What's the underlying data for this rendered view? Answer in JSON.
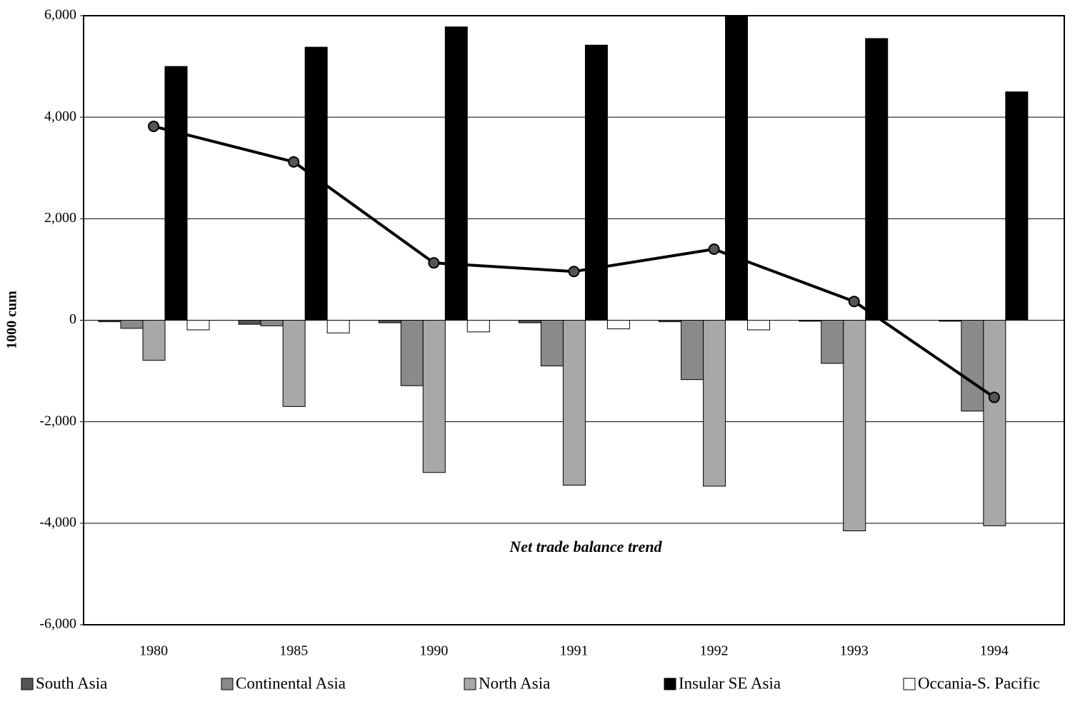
{
  "chart_data": {
    "type": "bar",
    "y_axis_label": "1000 cum",
    "annotation": "Net trade balance trend",
    "categories": [
      "1980",
      "1985",
      "1990",
      "1991",
      "1992",
      "1993",
      "1994"
    ],
    "series": [
      {
        "name": "South Asia",
        "color": "#555555",
        "values": [
          -30,
          -80,
          -50,
          -50,
          -30,
          -20,
          -20
        ]
      },
      {
        "name": "Continental Asia",
        "color": "#8a8a8a",
        "values": [
          -160,
          -110,
          -1290,
          -900,
          -1170,
          -850,
          -1790
        ]
      },
      {
        "name": "North Asia",
        "color": "#a8a8a8",
        "values": [
          -790,
          -1700,
          -3000,
          -3250,
          -3270,
          -4150,
          -4050
        ]
      },
      {
        "name": "Insular SE Asia",
        "color": "#000000",
        "values": [
          5000,
          5380,
          5780,
          5420,
          6000,
          5550,
          4500
        ]
      },
      {
        "name": "Occania-S. Pacific",
        "color": "#ffffff",
        "values": [
          -190,
          -250,
          -230,
          -170,
          -190,
          0,
          0
        ]
      }
    ],
    "trend": {
      "type": "line",
      "color": "#000000",
      "values": [
        3820,
        3120,
        1130,
        960,
        1400,
        370,
        -1520
      ]
    },
    "ylim": [
      -6000,
      6000
    ],
    "yticks": [
      {
        "value": -6000,
        "label": "-6,000"
      },
      {
        "value": -4000,
        "label": "-4,000"
      },
      {
        "value": -2000,
        "label": "-2,000"
      },
      0,
      {
        "value": 2000,
        "label": "2,000"
      },
      {
        "value": 4000,
        "label": "4,000"
      },
      {
        "value": 6000,
        "label": "6,000"
      }
    ],
    "grid": true
  }
}
